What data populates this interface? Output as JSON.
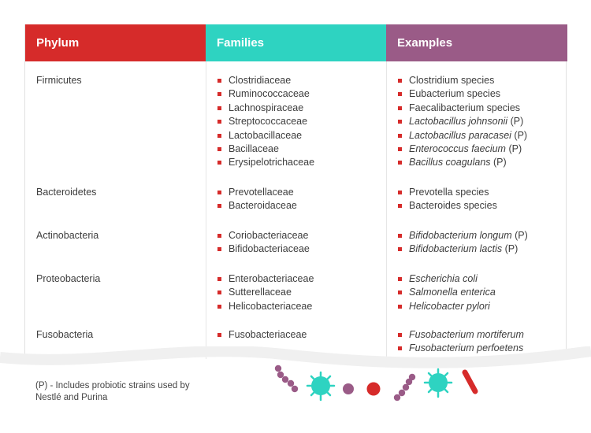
{
  "colors": {
    "phylum_header": "#d62b2a",
    "families_header": "#2ed3c1",
    "examples_header": "#9a5b87",
    "bullet": "#d62b2a"
  },
  "table": {
    "headers": [
      "Phylum",
      "Families",
      "Examples"
    ],
    "rows": [
      {
        "phylum": "Firmicutes",
        "families": [
          "Clostridiaceae",
          "Ruminococcaceae",
          "Lachnospiraceae",
          "Streptococcaceae",
          "Lactobacillaceae",
          "Bacillaceae",
          "Erysipelotrichaceae"
        ],
        "examples": [
          {
            "name": "Clostridium species",
            "suffix": ""
          },
          {
            "name": "Eubacterium species",
            "suffix": ""
          },
          {
            "name": "Faecalibacterium species",
            "suffix": ""
          },
          {
            "name": "Lactobacillus johnsonii",
            "suffix": " (P)"
          },
          {
            "name": "Lactobacillus paracasei",
            "suffix": " (P)"
          },
          {
            "name": "Enterococcus faecium",
            "suffix": " (P)"
          },
          {
            "name": "Bacillus coagulans",
            "suffix": " (P)"
          }
        ]
      },
      {
        "phylum": "Bacteroidetes",
        "families": [
          "Prevotellaceae",
          "Bacteroidaceae"
        ],
        "examples": [
          {
            "name": "Prevotella species",
            "suffix": ""
          },
          {
            "name": "Bacteroides species",
            "suffix": ""
          }
        ]
      },
      {
        "phylum": "Actinobacteria",
        "families": [
          "Coriobacteriaceae",
          "Bifidobacteriaceae"
        ],
        "examples": [
          {
            "name": "Bifidobacterium longum",
            "suffix": " (P)"
          },
          {
            "name": "Bifidobacterium lactis",
            "suffix": " (P)"
          }
        ]
      },
      {
        "phylum": "Proteobacteria",
        "families": [
          "Enterobacteriaceae",
          "Sutterellaceae",
          "Helicobacteriaceae"
        ],
        "examples": [
          {
            "name": "Escherichia coli",
            "suffix": ""
          },
          {
            "name": "Salmonella enterica",
            "suffix": ""
          },
          {
            "name": "Helicobacter pylori",
            "suffix": ""
          }
        ]
      },
      {
        "phylum": "Fusobacteria",
        "families": [
          "Fusobacteriaceae"
        ],
        "examples": [
          {
            "name": "Fusobacterium mortiferum",
            "suffix": ""
          },
          {
            "name": "Fusobacterium perfoetens",
            "suffix": ""
          }
        ]
      }
    ]
  },
  "footnote": "(P) - Includes probiotic strains used by Nestlé and Purina",
  "decorations": [
    "purple-chain-bacterium-icon",
    "teal-spiky-virus-icon",
    "purple-dot-icon",
    "red-dot-icon",
    "purple-chain-bacterium-icon",
    "teal-spiky-virus-icon",
    "red-rod-bacterium-icon"
  ]
}
